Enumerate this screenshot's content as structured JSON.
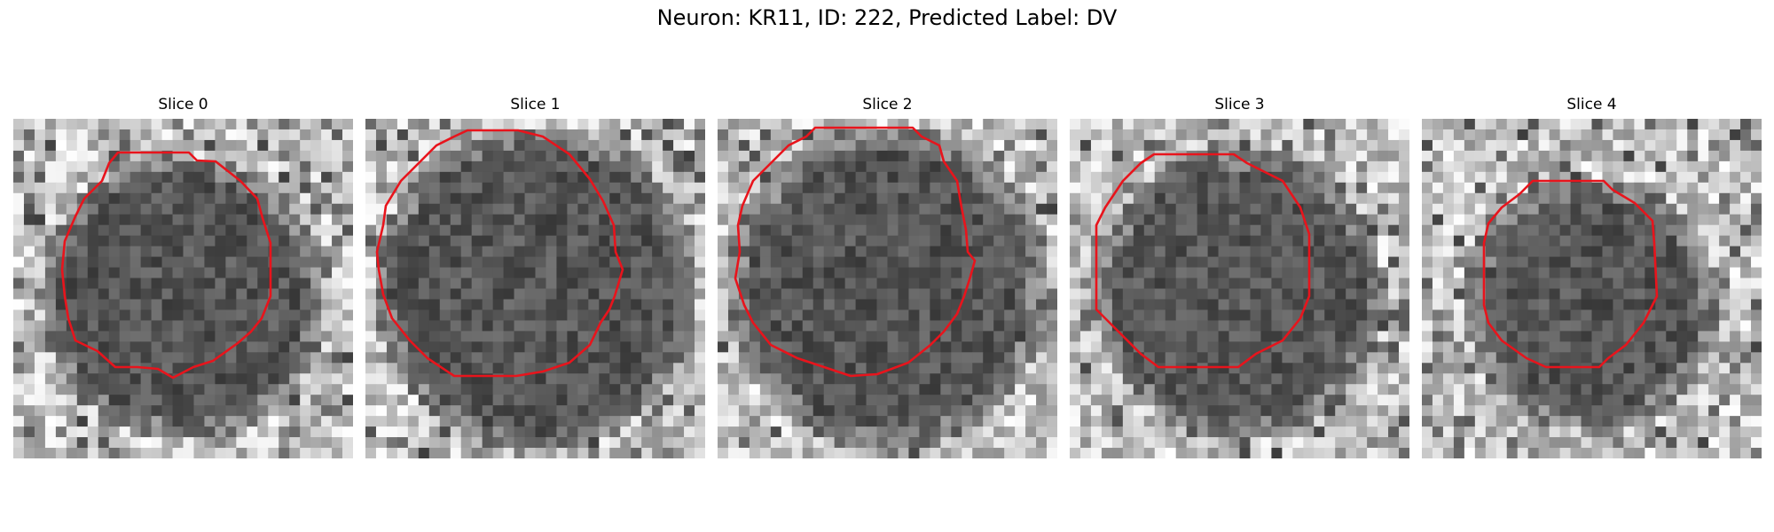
{
  "figure": {
    "title": "Neuron: KR11, ID: 222, Predicted Label: DV",
    "panels": [
      {
        "title": "Slice 0",
        "seed": 11,
        "contour_color": "#e8141c"
      },
      {
        "title": "Slice 1",
        "seed": 23,
        "contour_color": "#e8141c"
      },
      {
        "title": "Slice 2",
        "seed": 37,
        "contour_color": "#e8141c"
      },
      {
        "title": "Slice 3",
        "seed": 41,
        "contour_color": "#e8141c"
      },
      {
        "title": "Slice 4",
        "seed": 59,
        "contour_color": "#e8141c"
      }
    ],
    "colormap": "grayscale",
    "axes": "off"
  }
}
